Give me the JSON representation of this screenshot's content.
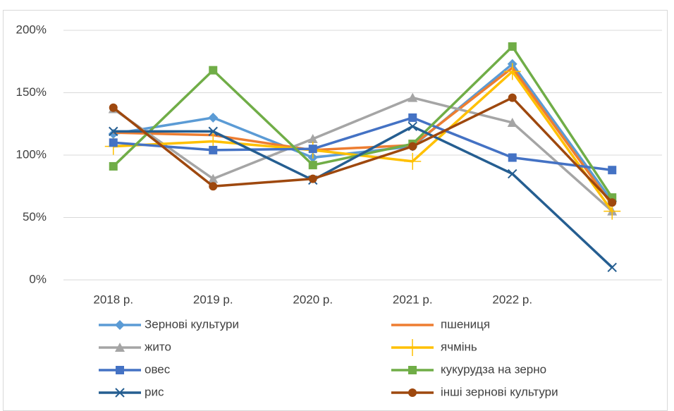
{
  "chart_data": {
    "type": "line",
    "categories": [
      "2018 р.",
      "2019 р.",
      "2020 р.",
      "2021 р.",
      "2022 р.",
      null
    ],
    "ylim": [
      0,
      200
    ],
    "yticks": [
      {
        "value": 0,
        "label": "0%"
      },
      {
        "value": 50,
        "label": "50%"
      },
      {
        "value": 100,
        "label": "100%"
      },
      {
        "value": 150,
        "label": "150%"
      },
      {
        "value": 200,
        "label": "200%"
      }
    ],
    "grid": true,
    "legend": "bottom",
    "series": [
      {
        "name": "Зернові культури",
        "color": "#5b9bd5",
        "marker": "diamond",
        "values": [
          117,
          130,
          98,
          107,
          173,
          63
        ]
      },
      {
        "name": "пшениця",
        "color": "#ed7d31",
        "marker": "none",
        "values": [
          118,
          116,
          104,
          108,
          170,
          60
        ]
      },
      {
        "name": "жито",
        "color": "#a5a5a5",
        "marker": "triangle",
        "values": [
          137,
          81,
          113,
          146,
          126,
          55
        ]
      },
      {
        "name": "ячмінь",
        "color": "#ffc000",
        "marker": "plus",
        "values": [
          107,
          111,
          104,
          95,
          167,
          55
        ]
      },
      {
        "name": "овес",
        "color": "#4472c4",
        "marker": "square",
        "values": [
          110,
          104,
          105,
          130,
          98,
          88
        ]
      },
      {
        "name": "кукурудза на зерно",
        "color": "#70ad47",
        "marker": "square",
        "values": [
          91,
          168,
          92,
          109,
          187,
          66
        ]
      },
      {
        "name": "рис",
        "color": "#255e91",
        "marker": "x",
        "values": [
          119,
          119,
          80,
          123,
          85,
          10
        ]
      },
      {
        "name": "інші зернові культури",
        "color": "#9e480e",
        "marker": "circle",
        "values": [
          138,
          75,
          81,
          107,
          146,
          62
        ]
      }
    ]
  }
}
